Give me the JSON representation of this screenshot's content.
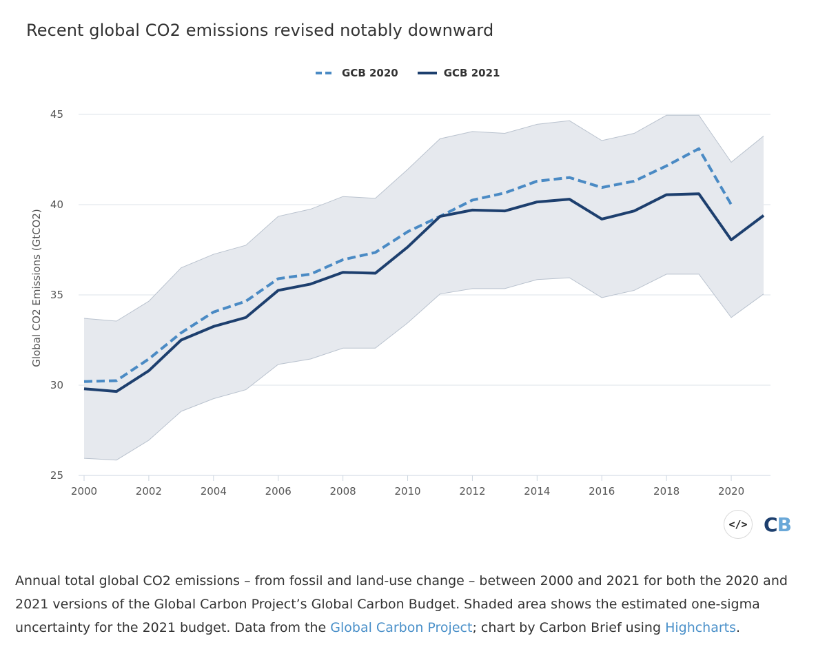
{
  "title": "Recent global CO2 emissions revised notably downward",
  "legend": {
    "gcb2020": "GCB 2020",
    "gcb2021": "GCB 2021"
  },
  "colors": {
    "gcb2020": "#4a8ac4",
    "gcb2021": "#1d3f6e",
    "band": "#e6e9ee",
    "band_edge": "#b9c2ce",
    "grid": "#dde3ea",
    "cb_c": "#1d3f6e",
    "cb_b": "#6aa8d8"
  },
  "logo": {
    "code_icon": "</>",
    "cb_c": "C",
    "cb_b": "B"
  },
  "caption": {
    "part1": "Annual total global CO2 emissions – from fossil and land-use change – between 2000 and 2021 for both the 2020 and 2021 versions of the Global Carbon Project’s Global Carbon Budget. Shaded area shows the estimated one-sigma uncertainty for the 2021 budget. Data from the ",
    "link1": "Global Carbon Project",
    "part2": "; chart by Carbon Brief using ",
    "link2": "Highcharts",
    "part3": "."
  },
  "chart_data": {
    "type": "line",
    "ylabel": "Global CO2 Emissions (GtCO2)",
    "xlabel": "",
    "xlim": [
      2000,
      2021
    ],
    "ylim": [
      25,
      45
    ],
    "xticks": [
      2000,
      2002,
      2004,
      2006,
      2008,
      2010,
      2012,
      2014,
      2016,
      2018,
      2020
    ],
    "yticks": [
      25,
      30,
      35,
      40,
      45
    ],
    "grid": true,
    "legend_position": "top-center",
    "series": [
      {
        "name": "GCB 2020",
        "style": "dashed",
        "x": [
          2000,
          2001,
          2002,
          2003,
          2004,
          2005,
          2006,
          2007,
          2008,
          2009,
          2010,
          2011,
          2012,
          2013,
          2014,
          2015,
          2016,
          2017,
          2018,
          2019,
          2020
        ],
        "values": [
          30.2,
          30.25,
          31.45,
          32.9,
          34.05,
          34.65,
          35.9,
          36.15,
          36.95,
          37.35,
          38.5,
          39.35,
          40.25,
          40.65,
          41.3,
          41.5,
          40.95,
          41.3,
          42.15,
          43.1,
          40.0
        ]
      },
      {
        "name": "GCB 2021",
        "style": "solid",
        "x": [
          2000,
          2001,
          2002,
          2003,
          2004,
          2005,
          2006,
          2007,
          2008,
          2009,
          2010,
          2011,
          2012,
          2013,
          2014,
          2015,
          2016,
          2017,
          2018,
          2019,
          2020,
          2021
        ],
        "values": [
          29.8,
          29.65,
          30.8,
          32.5,
          33.25,
          33.75,
          35.25,
          35.6,
          36.25,
          36.2,
          37.65,
          39.35,
          39.7,
          39.65,
          40.15,
          40.3,
          39.2,
          39.65,
          40.55,
          40.6,
          38.05,
          39.4
        ]
      }
    ],
    "uncertainty_band": {
      "x": [
        2000,
        2001,
        2002,
        2003,
        2004,
        2005,
        2006,
        2007,
        2008,
        2009,
        2010,
        2011,
        2012,
        2013,
        2014,
        2015,
        2016,
        2017,
        2018,
        2019,
        2020,
        2021
      ],
      "upper": [
        33.7,
        33.55,
        34.65,
        36.5,
        37.25,
        37.75,
        39.35,
        39.75,
        40.45,
        40.35,
        41.95,
        43.65,
        44.05,
        43.95,
        44.45,
        44.65,
        43.55,
        43.95,
        44.95,
        44.95,
        42.35,
        43.8
      ],
      "lower": [
        25.95,
        25.85,
        26.95,
        28.55,
        29.25,
        29.75,
        31.15,
        31.45,
        32.05,
        32.05,
        33.45,
        35.05,
        35.35,
        35.35,
        35.85,
        35.95,
        34.85,
        35.25,
        36.15,
        36.15,
        33.75,
        35.05
      ]
    }
  }
}
